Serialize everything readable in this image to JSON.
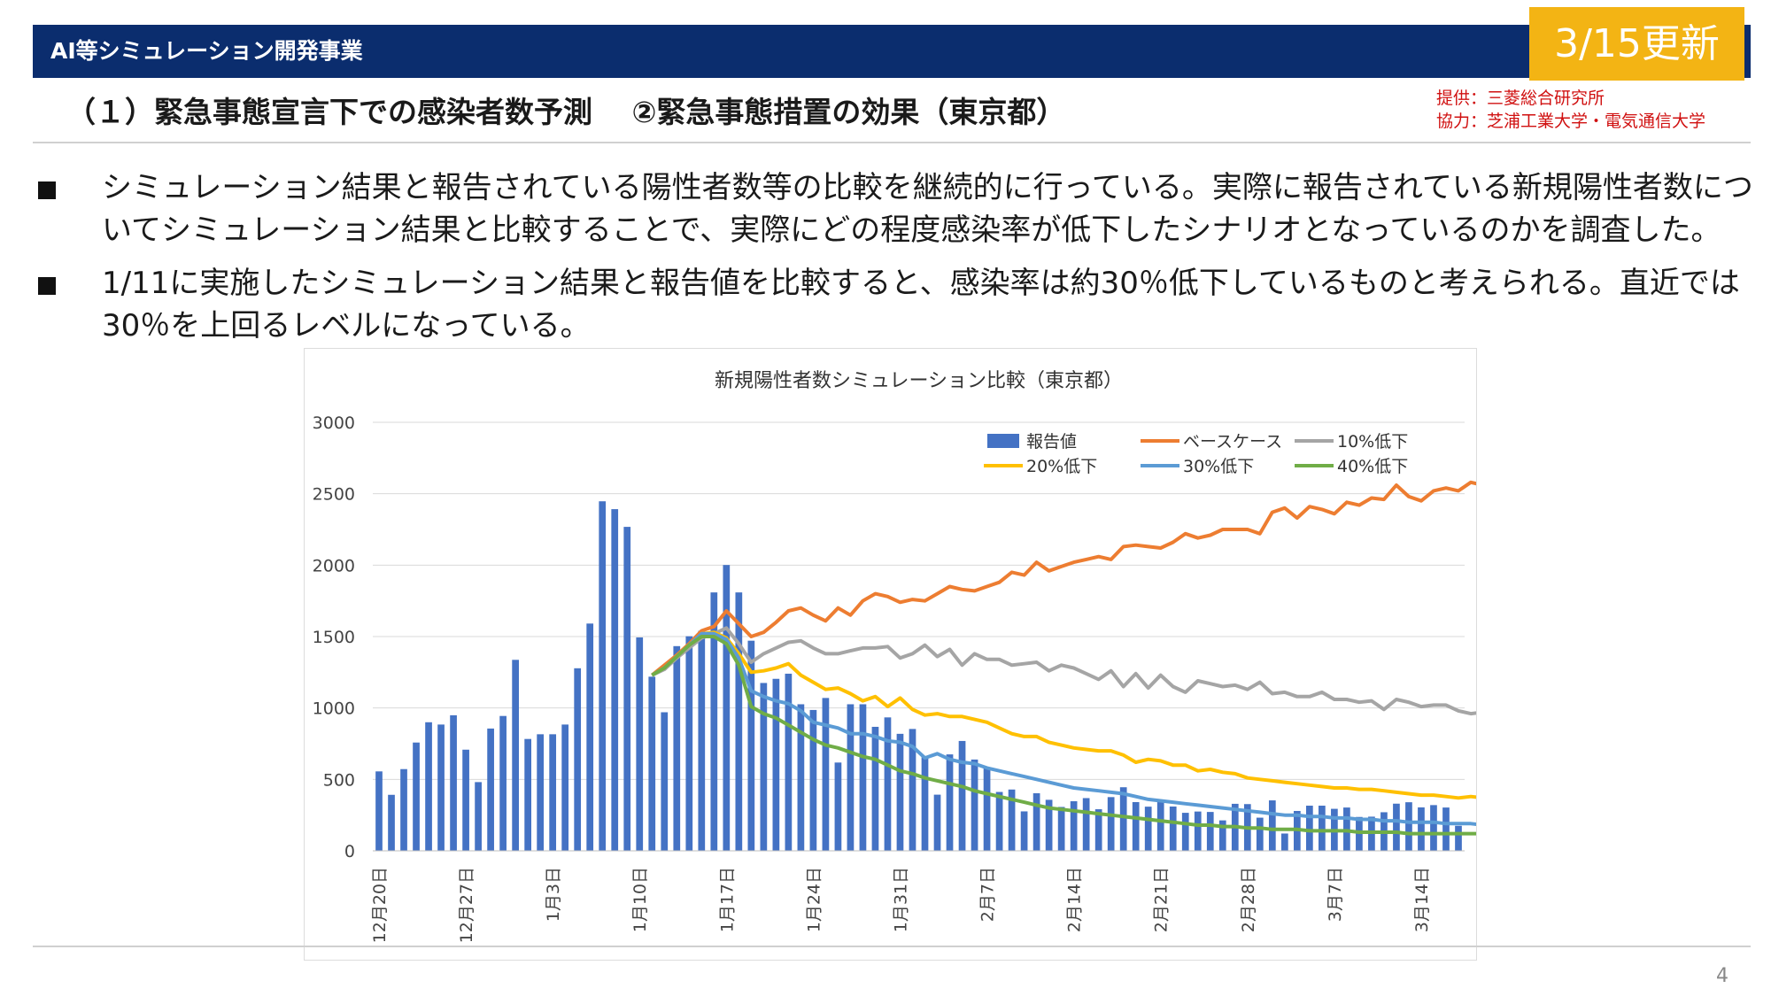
{
  "header": {
    "title": "AI等シミュレーション開発事業",
    "update_badge": "3/15更新",
    "bar_color": "#0b2d6e",
    "badge_color": "#f3b414"
  },
  "subtitle": "（１）緊急事態宣言下での感染者数予測　 ②緊急事態措置の効果（東京都）",
  "credits": {
    "provider": "提供：三菱総合研究所",
    "cooperation": "協力：芝浦工業大学・電気通信大学"
  },
  "bullets": [
    {
      "line1": "シミュレーション結果と報告されている陽性者数等の比較を継続的に行っている。実際に報告されている新規陽性者数につ",
      "line2": "いてシミュレーション結果と比較することで、実際にどの程度感染率が低下したシナリオとなっているのかを調査した。"
    },
    {
      "line1": "1/11に実施したシミュレーション結果と報告値を比較すると、感染率は約30％低下しているものと考えられる。直近では",
      "line2": "30％を上回るレベルになっている。"
    }
  ],
  "page_number": "4",
  "chart_data": {
    "type": "bar",
    "title": "新規陽性者数シミュレーション比較（東京都）",
    "xlabel": "",
    "ylabel": "",
    "ylim": [
      0,
      3000
    ],
    "yticks": [
      0,
      500,
      1000,
      1500,
      2000,
      2500,
      3000
    ],
    "grid": true,
    "legend_position": "top-right",
    "x_start": "12月20日",
    "x_end": "3月18日",
    "x_tick_labels": [
      {
        "index": 0,
        "label": "12月20日"
      },
      {
        "index": 7,
        "label": "12月27日"
      },
      {
        "index": 14,
        "label": "1月3日"
      },
      {
        "index": 21,
        "label": "1月10日"
      },
      {
        "index": 28,
        "label": "1月17日"
      },
      {
        "index": 35,
        "label": "1月24日"
      },
      {
        "index": 42,
        "label": "1月31日"
      },
      {
        "index": 49,
        "label": "2月7日"
      },
      {
        "index": 56,
        "label": "2月14日"
      },
      {
        "index": 63,
        "label": "2月21日"
      },
      {
        "index": 70,
        "label": "2月28日"
      },
      {
        "index": 77,
        "label": "3月7日"
      },
      {
        "index": 84,
        "label": "3月14日"
      }
    ],
    "series": [
      {
        "name": "報告値",
        "kind": "bar",
        "color": "#4472c4",
        "values": [
          556,
          392,
          572,
          758,
          900,
          884,
          949,
          708,
          481,
          856,
          944,
          1337,
          783,
          816,
          816,
          884,
          1278,
          1591,
          2447,
          2392,
          2268,
          1494,
          1219,
          970,
          1433,
          1502,
          1540,
          1809,
          2001,
          1809,
          1471,
          1175,
          1204,
          1240,
          1026,
          986,
          1070,
          618,
          1026,
          1026,
          868,
          934,
          819,
          853,
          655,
          393,
          675,
          769,
          639,
          577,
          412,
          429,
          276,
          403,
          357,
          307,
          347,
          369,
          291,
          376,
          445,
          341,
          309,
          345,
          310,
          266,
          275,
          272,
          213,
          329,
          327,
          232,
          353,
          121,
          279,
          316,
          316,
          294,
          303,
          237,
          239,
          270,
          330,
          340,
          304,
          320,
          303,
          175
        ]
      },
      {
        "name": "ベースケース",
        "kind": "line",
        "color": "#ed7d31",
        "start_index": 22,
        "values": [
          1230,
          1300,
          1370,
          1450,
          1540,
          1570,
          1680,
          1590,
          1500,
          1530,
          1600,
          1680,
          1700,
          1650,
          1610,
          1700,
          1650,
          1750,
          1800,
          1780,
          1740,
          1760,
          1750,
          1800,
          1850,
          1830,
          1820,
          1850,
          1880,
          1950,
          1930,
          2020,
          1960,
          1990,
          2020,
          2040,
          2060,
          2040,
          2130,
          2140,
          2130,
          2120,
          2160,
          2220,
          2190,
          2210,
          2250,
          2250,
          2250,
          2220,
          2370,
          2400,
          2330,
          2410,
          2390,
          2360,
          2440,
          2420,
          2470,
          2460,
          2560,
          2480,
          2450,
          2520,
          2540,
          2520,
          2580,
          2560,
          2540,
          2580,
          2680,
          2620
        ]
      },
      {
        "name": "10%低下",
        "kind": "line",
        "color": "#a5a5a5",
        "start_index": 22,
        "values": [
          1230,
          1270,
          1350,
          1420,
          1490,
          1520,
          1560,
          1450,
          1320,
          1380,
          1420,
          1460,
          1470,
          1420,
          1380,
          1380,
          1400,
          1420,
          1420,
          1430,
          1350,
          1380,
          1440,
          1360,
          1410,
          1300,
          1380,
          1340,
          1340,
          1300,
          1310,
          1320,
          1260,
          1300,
          1280,
          1240,
          1200,
          1260,
          1150,
          1240,
          1140,
          1230,
          1150,
          1110,
          1190,
          1170,
          1150,
          1160,
          1130,
          1180,
          1100,
          1110,
          1080,
          1080,
          1110,
          1060,
          1060,
          1040,
          1050,
          990,
          1060,
          1040,
          1010,
          1020,
          1020,
          980,
          960,
          970,
          980,
          980,
          970,
          1020
        ]
      },
      {
        "name": "20%低下",
        "kind": "line",
        "color": "#ffc000",
        "start_index": 22,
        "values": [
          1230,
          1280,
          1360,
          1440,
          1520,
          1530,
          1490,
          1380,
          1250,
          1260,
          1280,
          1310,
          1230,
          1180,
          1130,
          1140,
          1100,
          1050,
          1080,
          1010,
          1070,
          990,
          950,
          960,
          940,
          940,
          920,
          900,
          860,
          820,
          800,
          800,
          760,
          740,
          720,
          710,
          700,
          700,
          670,
          620,
          640,
          630,
          600,
          600,
          560,
          570,
          550,
          540,
          510,
          500,
          490,
          480,
          470,
          460,
          450,
          440,
          440,
          430,
          430,
          420,
          410,
          400,
          390,
          390,
          380,
          370,
          380,
          370,
          360,
          360,
          380,
          370
        ]
      },
      {
        "name": "30%低下",
        "kind": "line",
        "color": "#5b9bd5",
        "start_index": 22,
        "values": [
          1230,
          1280,
          1360,
          1440,
          1520,
          1520,
          1480,
          1350,
          1120,
          1080,
          1050,
          1030,
          980,
          900,
          880,
          860,
          820,
          820,
          800,
          770,
          760,
          730,
          650,
          680,
          640,
          620,
          610,
          580,
          560,
          540,
          520,
          500,
          480,
          460,
          440,
          430,
          420,
          410,
          400,
          380,
          360,
          350,
          340,
          330,
          320,
          310,
          300,
          290,
          280,
          270,
          260,
          250,
          250,
          240,
          240,
          230,
          230,
          220,
          220,
          210,
          210,
          200,
          200,
          200,
          190,
          190,
          190,
          180,
          180,
          180,
          180,
          180
        ]
      },
      {
        "name": "40%低下",
        "kind": "line",
        "color": "#70ad47",
        "start_index": 22,
        "values": [
          1230,
          1280,
          1360,
          1440,
          1500,
          1500,
          1450,
          1300,
          1010,
          960,
          930,
          880,
          830,
          780,
          740,
          720,
          690,
          660,
          640,
          600,
          560,
          540,
          510,
          490,
          470,
          450,
          420,
          400,
          380,
          360,
          340,
          320,
          300,
          290,
          280,
          270,
          260,
          250,
          240,
          230,
          220,
          210,
          200,
          190,
          180,
          180,
          170,
          170,
          160,
          160,
          150,
          150,
          150,
          140,
          140,
          140,
          140,
          130,
          130,
          130,
          130,
          120,
          120,
          120,
          120,
          120,
          120,
          120,
          120,
          120,
          120,
          125
        ]
      }
    ]
  }
}
